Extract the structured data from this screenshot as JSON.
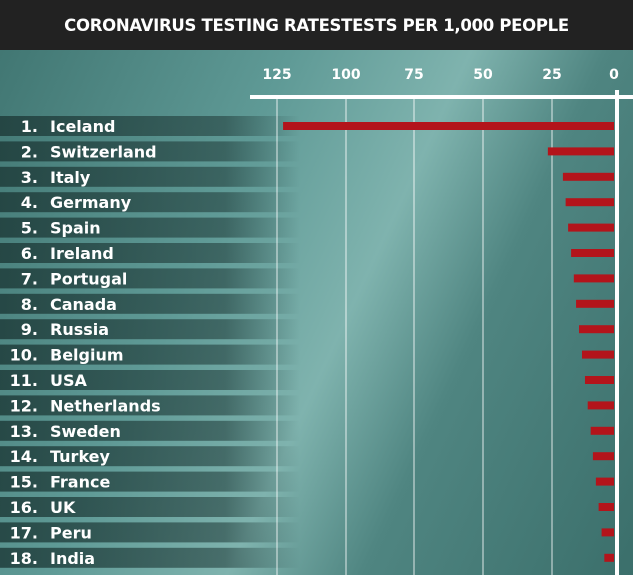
{
  "chart_data": {
    "type": "bar",
    "orientation": "horizontal",
    "title": "CORONAVIRUS TESTING RATESTESTS PER 1,000 PEOPLE",
    "categories": [
      "1.|Iceland",
      "2.|Switzerland",
      "3.|Italy",
      "4.|Germany",
      "5.|Spain",
      "6.|Ireland",
      "7.|Portugal",
      "8.|Canada",
      "9.|Russia",
      "10.|Belgium",
      "11.|USA",
      "12.|Netherlands",
      "13.|Sweden",
      "14.|Turkey",
      "15.|France",
      "16.|UK",
      "17.|Peru",
      "18.|India"
    ],
    "values": [
      122.8,
      26.5,
      20.6,
      19.5,
      18.5,
      17.3,
      16.2,
      15.3,
      14.1,
      12.9,
      11.7,
      10.6,
      9.4,
      8.5,
      7.3,
      6.2,
      5.0,
      3.9
    ],
    "xticks": [
      125,
      100,
      75,
      50,
      25,
      0
    ],
    "xlim": [
      125,
      0
    ],
    "axis_reversed": true,
    "grid": true,
    "bar_color": "#b3141b",
    "background_color": "#4f8581",
    "header_color": "#222222"
  }
}
